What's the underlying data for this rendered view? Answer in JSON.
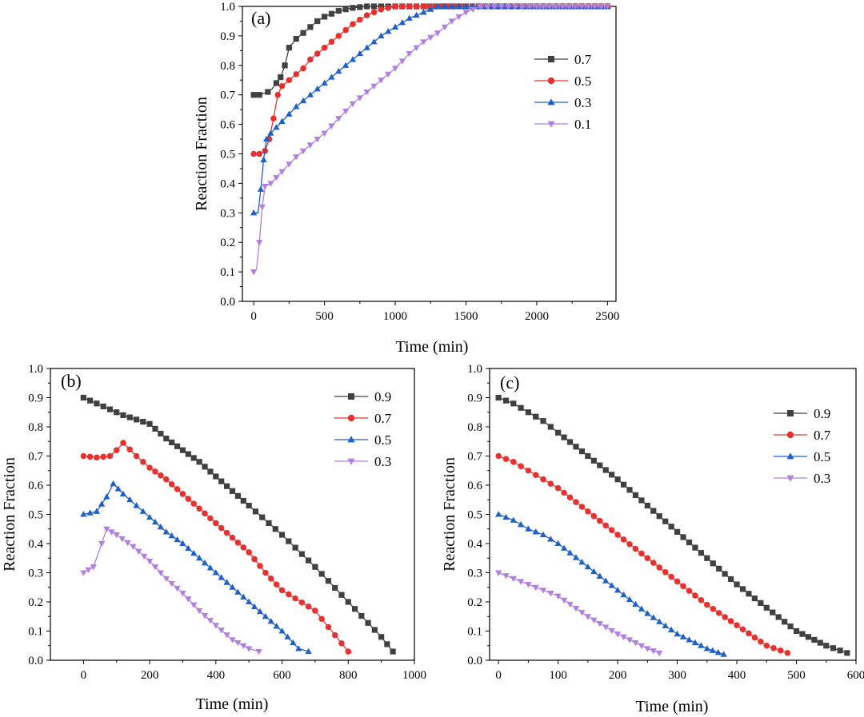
{
  "colors": {
    "gray": "#404040",
    "red": "#e8312f",
    "blue": "#1f5fc8",
    "purple": "#b07fe0"
  },
  "chart_data": [
    {
      "id": "a",
      "type": "line",
      "panel_label": "(a)",
      "xlabel": "Time (min)",
      "ylabel": "Reaction Fraction",
      "xlim": [
        -80,
        2560
      ],
      "ylim": [
        0,
        1.0
      ],
      "xticks": [
        0,
        500,
        1000,
        1500,
        2000,
        2500
      ],
      "yticks": [
        0.0,
        0.1,
        0.2,
        0.3,
        0.4,
        0.5,
        0.6,
        0.7,
        0.8,
        0.9,
        1.0
      ],
      "legend_position": "top-right",
      "series": [
        {
          "name": "0.7",
          "color": "#404040",
          "marker": "square",
          "points": [
            [
              0,
              0.7
            ],
            [
              40,
              0.7
            ],
            [
              70,
              0.705
            ],
            [
              100,
              0.71
            ],
            [
              130,
              0.72
            ],
            [
              160,
              0.74
            ],
            [
              190,
              0.76
            ],
            [
              220,
              0.8
            ],
            [
              250,
              0.86
            ],
            [
              300,
              0.89
            ],
            [
              350,
              0.91
            ],
            [
              400,
              0.93
            ],
            [
              450,
              0.95
            ],
            [
              500,
              0.965
            ],
            [
              600,
              0.985
            ],
            [
              700,
              0.995
            ],
            [
              800,
              1.0
            ],
            [
              900,
              1.0
            ],
            [
              1000,
              1.0
            ],
            [
              1200,
              1.0
            ],
            [
              1500,
              1.0
            ],
            [
              2000,
              1.0
            ],
            [
              2500,
              1.0
            ]
          ],
          "marker_step": 1
        },
        {
          "name": "0.5",
          "color": "#e8312f",
          "marker": "circle",
          "points": [
            [
              0,
              0.5
            ],
            [
              40,
              0.5
            ],
            [
              80,
              0.51
            ],
            [
              110,
              0.55
            ],
            [
              140,
              0.62
            ],
            [
              170,
              0.7
            ],
            [
              200,
              0.73
            ],
            [
              250,
              0.75
            ],
            [
              300,
              0.77
            ],
            [
              350,
              0.79
            ],
            [
              400,
              0.82
            ],
            [
              450,
              0.84
            ],
            [
              500,
              0.86
            ],
            [
              600,
              0.9
            ],
            [
              700,
              0.94
            ],
            [
              800,
              0.97
            ],
            [
              900,
              0.99
            ],
            [
              1000,
              1.0
            ],
            [
              1100,
              1.0
            ],
            [
              1200,
              1.0
            ],
            [
              1500,
              1.0
            ],
            [
              2000,
              1.0
            ],
            [
              2500,
              1.0
            ]
          ],
          "marker_step": 1
        },
        {
          "name": "0.3",
          "color": "#1f5fc8",
          "marker": "triangle-up",
          "points": [
            [
              0,
              0.3
            ],
            [
              30,
              0.3
            ],
            [
              50,
              0.38
            ],
            [
              70,
              0.48
            ],
            [
              90,
              0.55
            ],
            [
              120,
              0.57
            ],
            [
              200,
              0.61
            ],
            [
              300,
              0.66
            ],
            [
              400,
              0.7
            ],
            [
              500,
              0.74
            ],
            [
              600,
              0.78
            ],
            [
              700,
              0.82
            ],
            [
              800,
              0.86
            ],
            [
              900,
              0.9
            ],
            [
              1000,
              0.93
            ],
            [
              1100,
              0.96
            ],
            [
              1200,
              0.98
            ],
            [
              1300,
              1.0
            ],
            [
              1400,
              1.0
            ],
            [
              1500,
              1.0
            ],
            [
              2000,
              1.0
            ],
            [
              2500,
              1.0
            ]
          ],
          "marker_step": 1
        },
        {
          "name": "0.1",
          "color": "#b07fe0",
          "marker": "triangle-down",
          "points": [
            [
              0,
              0.1
            ],
            [
              20,
              0.11
            ],
            [
              40,
              0.2
            ],
            [
              60,
              0.32
            ],
            [
              80,
              0.39
            ],
            [
              120,
              0.4
            ],
            [
              200,
              0.44
            ],
            [
              300,
              0.49
            ],
            [
              400,
              0.53
            ],
            [
              500,
              0.57
            ],
            [
              600,
              0.62
            ],
            [
              700,
              0.67
            ],
            [
              800,
              0.71
            ],
            [
              900,
              0.75
            ],
            [
              1000,
              0.79
            ],
            [
              1100,
              0.84
            ],
            [
              1200,
              0.88
            ],
            [
              1300,
              0.91
            ],
            [
              1400,
              0.95
            ],
            [
              1500,
              0.98
            ],
            [
              1600,
              1.0
            ],
            [
              1700,
              1.0
            ],
            [
              1800,
              1.0
            ],
            [
              2000,
              1.0
            ],
            [
              2500,
              1.0
            ]
          ],
          "marker_step": 1
        }
      ]
    },
    {
      "id": "b",
      "type": "line",
      "panel_label": "(b)",
      "xlabel": "Time (min)",
      "ylabel": "Reaction Fraction",
      "xlim": [
        -100,
        1000
      ],
      "ylim": [
        0,
        1.0
      ],
      "xticks": [
        0,
        200,
        400,
        600,
        800,
        1000
      ],
      "yticks": [
        0.0,
        0.1,
        0.2,
        0.3,
        0.4,
        0.5,
        0.6,
        0.7,
        0.8,
        0.9,
        1.0
      ],
      "legend_position": "top-right",
      "series": [
        {
          "name": "0.9",
          "color": "#404040",
          "marker": "square",
          "points": [
            [
              0,
              0.9
            ],
            [
              40,
              0.88
            ],
            [
              80,
              0.86
            ],
            [
              120,
              0.84
            ],
            [
              160,
              0.825
            ],
            [
              200,
              0.81
            ],
            [
              250,
              0.76
            ],
            [
              300,
              0.72
            ],
            [
              350,
              0.68
            ],
            [
              400,
              0.63
            ],
            [
              450,
              0.58
            ],
            [
              500,
              0.53
            ],
            [
              600,
              0.43
            ],
            [
              700,
              0.32
            ],
            [
              800,
              0.2
            ],
            [
              900,
              0.08
            ],
            [
              935,
              0.03
            ]
          ],
          "marker_step": 1
        },
        {
          "name": "0.7",
          "color": "#e8312f",
          "marker": "circle",
          "points": [
            [
              0,
              0.7
            ],
            [
              40,
              0.695
            ],
            [
              80,
              0.7
            ],
            [
              100,
              0.72
            ],
            [
              120,
              0.745
            ],
            [
              160,
              0.7
            ],
            [
              200,
              0.66
            ],
            [
              250,
              0.62
            ],
            [
              300,
              0.57
            ],
            [
              350,
              0.52
            ],
            [
              400,
              0.47
            ],
            [
              450,
              0.42
            ],
            [
              500,
              0.37
            ],
            [
              550,
              0.3
            ],
            [
              600,
              0.24
            ],
            [
              700,
              0.17
            ],
            [
              800,
              0.03
            ],
            [
              810,
              0.025
            ]
          ],
          "marker_step": 1
        },
        {
          "name": "0.5",
          "color": "#1f5fc8",
          "marker": "triangle-up",
          "points": [
            [
              0,
              0.5
            ],
            [
              40,
              0.51
            ],
            [
              70,
              0.56
            ],
            [
              90,
              0.605
            ],
            [
              120,
              0.57
            ],
            [
              160,
              0.53
            ],
            [
              200,
              0.49
            ],
            [
              250,
              0.44
            ],
            [
              300,
              0.4
            ],
            [
              350,
              0.35
            ],
            [
              400,
              0.3
            ],
            [
              450,
              0.25
            ],
            [
              500,
              0.2
            ],
            [
              550,
              0.15
            ],
            [
              600,
              0.1
            ],
            [
              650,
              0.04
            ],
            [
              680,
              0.03
            ]
          ],
          "marker_step": 1
        },
        {
          "name": "0.3",
          "color": "#b07fe0",
          "marker": "triangle-down",
          "points": [
            [
              0,
              0.3
            ],
            [
              30,
              0.32
            ],
            [
              55,
              0.4
            ],
            [
              70,
              0.45
            ],
            [
              100,
              0.43
            ],
            [
              150,
              0.39
            ],
            [
              200,
              0.34
            ],
            [
              250,
              0.28
            ],
            [
              300,
              0.23
            ],
            [
              350,
              0.17
            ],
            [
              400,
              0.12
            ],
            [
              450,
              0.07
            ],
            [
              500,
              0.04
            ],
            [
              530,
              0.03
            ]
          ],
          "marker_step": 1
        }
      ]
    },
    {
      "id": "c",
      "type": "line",
      "panel_label": "(c)",
      "xlabel": "Time (min)",
      "ylabel": "Reaction Fraction",
      "xlim": [
        -15,
        600
      ],
      "ylim": [
        0,
        1.0
      ],
      "xticks": [
        0,
        100,
        200,
        300,
        400,
        500,
        600
      ],
      "yticks": [
        0.0,
        0.1,
        0.2,
        0.3,
        0.4,
        0.5,
        0.6,
        0.7,
        0.8,
        0.9,
        1.0
      ],
      "legend_position": "top-right",
      "series": [
        {
          "name": "0.9",
          "color": "#404040",
          "marker": "square",
          "points": [
            [
              0,
              0.9
            ],
            [
              25,
              0.88
            ],
            [
              50,
              0.85
            ],
            [
              75,
              0.82
            ],
            [
              100,
              0.78
            ],
            [
              150,
              0.7
            ],
            [
              200,
              0.62
            ],
            [
              250,
              0.53
            ],
            [
              300,
              0.44
            ],
            [
              350,
              0.35
            ],
            [
              400,
              0.26
            ],
            [
              450,
              0.18
            ],
            [
              500,
              0.1
            ],
            [
              550,
              0.05
            ],
            [
              585,
              0.025
            ]
          ],
          "marker_step": 1
        },
        {
          "name": "0.7",
          "color": "#e8312f",
          "marker": "circle",
          "points": [
            [
              0,
              0.7
            ],
            [
              25,
              0.68
            ],
            [
              50,
              0.65
            ],
            [
              75,
              0.62
            ],
            [
              100,
              0.59
            ],
            [
              150,
              0.51
            ],
            [
              200,
              0.43
            ],
            [
              250,
              0.35
            ],
            [
              300,
              0.27
            ],
            [
              350,
              0.19
            ],
            [
              400,
              0.12
            ],
            [
              450,
              0.05
            ],
            [
              485,
              0.025
            ]
          ],
          "marker_step": 1
        },
        {
          "name": "0.5",
          "color": "#1f5fc8",
          "marker": "triangle-up",
          "points": [
            [
              0,
              0.5
            ],
            [
              25,
              0.48
            ],
            [
              50,
              0.45
            ],
            [
              75,
              0.43
            ],
            [
              100,
              0.4
            ],
            [
              150,
              0.32
            ],
            [
              200,
              0.24
            ],
            [
              250,
              0.16
            ],
            [
              300,
              0.09
            ],
            [
              350,
              0.04
            ],
            [
              378,
              0.02
            ]
          ],
          "marker_step": 1
        },
        {
          "name": "0.3",
          "color": "#b07fe0",
          "marker": "triangle-down",
          "points": [
            [
              0,
              0.3
            ],
            [
              25,
              0.28
            ],
            [
              50,
              0.26
            ],
            [
              75,
              0.24
            ],
            [
              100,
              0.22
            ],
            [
              150,
              0.15
            ],
            [
              200,
              0.09
            ],
            [
              250,
              0.04
            ],
            [
              270,
              0.025
            ]
          ],
          "marker_step": 1
        }
      ]
    }
  ]
}
